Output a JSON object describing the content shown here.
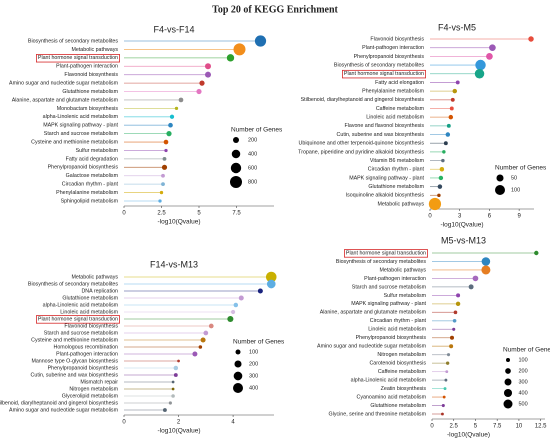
{
  "title": "Top 20 of KEGG Enrichment",
  "chart_data": [
    {
      "type": "lollipop",
      "title": "F4-vs-F14",
      "xlabel": "-log10(Qvalue)",
      "xlim": [
        0,
        10
      ],
      "xticks": [
        0,
        2.5,
        5,
        7.5
      ],
      "categories": [
        "Biosynthesis of secondary metabolites",
        "Metabolic pathways",
        "Plant hormone signal transduction",
        "Plant-pathogen interaction",
        "Flavonoid biosynthesis",
        "Amino sugar and nucleotide sugar metabolism",
        "Glutathione metabolism",
        "Alanine, aspartate and glutamate metabolism",
        "Monobactam biosynthesis",
        "alpha-Linolenic acid metabolism",
        "MAPK signaling pathway - plant",
        "Starch and sucrose metabolism",
        "Cysteine and methionine metabolism",
        "Sulfur metabolism",
        "Fatty acid degradation",
        "Phenylpropanoid biosynthesis",
        "Galactose metabolism",
        "Circadian rhythm - plant",
        "Phenylalanine metabolism",
        "Sphingolipid metabolism"
      ],
      "values": [
        9.1,
        7.7,
        7.1,
        5.6,
        5.6,
        5.2,
        5.0,
        3.8,
        3.5,
        3.2,
        3.1,
        3.0,
        2.8,
        2.8,
        2.7,
        2.7,
        2.6,
        2.6,
        2.5,
        2.4
      ],
      "sizes": [
        700,
        800,
        300,
        200,
        200,
        150,
        150,
        120,
        60,
        100,
        120,
        150,
        120,
        60,
        80,
        150,
        80,
        80,
        60,
        60
      ],
      "colors": [
        "#1f6fb2",
        "#f28e1c",
        "#2ca02c",
        "#e04d8a",
        "#9b59b6",
        "#c0392b",
        "#e377c2",
        "#8d8d8d",
        "#b5b51e",
        "#17becf",
        "#2e86c1",
        "#27ae60",
        "#d35400",
        "#8e44ad",
        "#7f8c8d",
        "#a04000",
        "#c39bd3",
        "#7fb3d5",
        "#d4ac0d",
        "#5dade2"
      ],
      "boxed_index": 2,
      "size_legend_title": "Number of Genes",
      "size_legend": [
        200,
        400,
        600,
        800
      ]
    },
    {
      "type": "lollipop",
      "title": "F4-vs-M5",
      "xlabel": "-log10(Qvalue)",
      "xlim": [
        0,
        10.5
      ],
      "xticks": [
        0,
        3,
        6,
        9
      ],
      "categories": [
        "Flavonoid biosynthesis",
        "Plant-pathogen interaction",
        "Phenylpropanoid biosynthesis",
        "Biosynthesis of secondary metabolites",
        "Plant hormone signal transduction",
        "Fatty acid elongation",
        "Phenylalanine metabolism",
        "Stilbenoid, diarylheptanoid and gingerol biosynthesis",
        "Caffeine metabolism",
        "Linoleic acid metabolism",
        "Flavone and flavonol biosynthesis",
        "Cutin, suberine and wax biosynthesis",
        "Ubiquinone and other terpenoid-quinone biosynthesis",
        "Tropane, piperidine and pyridine alkaloid biosynthesis",
        "Vitamin B6 metabolism",
        "Circadian rhythm - plant",
        "MAPK signaling pathway - plant",
        "Glutathione metabolism",
        "Isoquinoline alkaloid biosynthesis",
        "Metabolic pathways"
      ],
      "values": [
        10.2,
        6.3,
        6.0,
        5.1,
        5.0,
        2.8,
        2.5,
        2.3,
        2.2,
        2.1,
        1.9,
        1.8,
        1.6,
        1.4,
        1.3,
        1.2,
        1.1,
        1.0,
        0.9,
        0.5
      ],
      "sizes": [
        30,
        45,
        45,
        110,
        90,
        15,
        20,
        15,
        15,
        20,
        15,
        20,
        15,
        12,
        12,
        20,
        20,
        20,
        12,
        150
      ],
      "colors": [
        "#e74c3c",
        "#9b59b6",
        "#e056a8",
        "#3498db",
        "#17a589",
        "#8e44ad",
        "#b7950b",
        "#c0392b",
        "#e74c3c",
        "#d35400",
        "#16a085",
        "#2e86c1",
        "#2c3e50",
        "#27ae60",
        "#5d6d7e",
        "#d4ac0d",
        "#28b463",
        "#34495e",
        "#a04000",
        "#f39c12"
      ],
      "boxed_index": 4,
      "size_legend_title": "Number of Genes",
      "size_legend": [
        50,
        100
      ]
    },
    {
      "type": "lollipop",
      "title": "F14-vs-M13",
      "xlabel": "-log10(Qvalue)",
      "xlim": [
        0,
        5.5
      ],
      "xticks": [
        0,
        2,
        4
      ],
      "categories": [
        "Metabolic pathways",
        "Biosynthesis of secondary metabolites",
        "DNA replication",
        "Glutathione metabolism",
        "alpha-Linolenic acid metabolism",
        "Linoleic acid metabolism",
        "Plant hormone signal transduction",
        "Flavonoid biosynthesis",
        "Starch and sucrose metabolism",
        "Cysteine and methionine metabolism",
        "Homologous recombination",
        "Plant-pathogen interaction",
        "Mannose type O-glycan biosynthesis",
        "Phenylpropanoid biosynthesis",
        "Cutin, suberine and wax biosynthesis",
        "Mismatch repair",
        "Nitrogen metabolism",
        "Glycerolipid metabolism",
        "Stilbenoid, diarylheptanoid and gingerol biosynthesis",
        "Amino sugar and nucleotide sugar metabolism"
      ],
      "values": [
        5.4,
        5.4,
        5.0,
        4.3,
        4.1,
        4.0,
        3.9,
        3.2,
        3.0,
        2.9,
        2.8,
        2.6,
        2.0,
        1.9,
        1.9,
        1.8,
        1.8,
        1.8,
        1.7,
        1.5
      ],
      "sizes": [
        450,
        300,
        100,
        100,
        80,
        70,
        150,
        90,
        90,
        100,
        50,
        100,
        30,
        80,
        60,
        30,
        30,
        50,
        40,
        60
      ],
      "colors": [
        "#c9b000",
        "#5dade2",
        "#1a237e",
        "#c39bd3",
        "#85c1e9",
        "#d7bde2",
        "#2e8b2e",
        "#d98880",
        "#c39bd3",
        "#b9770e",
        "#a04000",
        "#9b59b6",
        "#b03a2e",
        "#a9cce3",
        "#7d3c98",
        "#566573",
        "#7d6608",
        "#b2babb",
        "#909497",
        "#566573"
      ],
      "boxed_index": 6,
      "size_legend_title": "Number of Genes",
      "size_legend": [
        100,
        200,
        300,
        400
      ]
    },
    {
      "type": "lollipop",
      "title": "M5-vs-M13",
      "xlabel": "-log10(Qvalue)",
      "xlim": [
        0,
        13
      ],
      "xticks": [
        0,
        2.5,
        5,
        7.5,
        10,
        12.5
      ],
      "categories": [
        "Plant hormone signal transduction",
        "Biosynthesis of secondary metabolites",
        "Metabolic pathways",
        "Plant-pathogen interaction",
        "Starch and sucrose metabolism",
        "Sulfur metabolism",
        "MAPK signaling pathway - plant",
        "Alanine, aspartate and glutamate metabolism",
        "Circadian rhythm - plant",
        "Linoleic acid metabolism",
        "Phenylpropanoid biosynthesis",
        "Amino sugar and nucleotide sugar metabolism",
        "Nitrogen metabolism",
        "Carotenoid biosynthesis",
        "Caffeine metabolism",
        "alpha-Linolenic acid metabolism",
        "Zeatin biosynthesis",
        "Cyanoamino acid metabolism",
        "Glutathione metabolism",
        "Glycine, serine and threonine metabolism"
      ],
      "values": [
        12.0,
        6.2,
        6.2,
        5.0,
        4.5,
        3.0,
        3.0,
        2.7,
        2.6,
        2.5,
        2.3,
        2.2,
        1.9,
        1.8,
        1.7,
        1.6,
        1.5,
        1.4,
        1.3,
        1.2
      ],
      "sizes": [
        120,
        450,
        500,
        200,
        150,
        100,
        120,
        80,
        80,
        60,
        100,
        100,
        60,
        70,
        50,
        50,
        50,
        50,
        60,
        50
      ],
      "colors": [
        "#2e8b2e",
        "#2e86c1",
        "#e67e22",
        "#a569bd",
        "#5d6d7e",
        "#8e44ad",
        "#b7950b",
        "#b03a2e",
        "#5499c7",
        "#7d3c98",
        "#a04000",
        "#b9770e",
        "#808b96",
        "#8e7d2c",
        "#c39bd3",
        "#5d6d7e",
        "#48c9b0",
        "#d35400",
        "#7d3c98",
        "#a93226"
      ],
      "boxed_index": 0,
      "size_legend_title": "Number of Genes",
      "size_legend": [
        100,
        200,
        300,
        400,
        500
      ]
    }
  ]
}
